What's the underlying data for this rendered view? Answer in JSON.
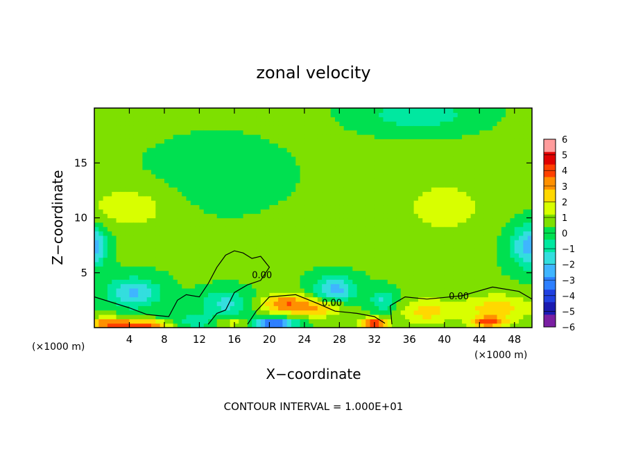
{
  "chart_data": {
    "type": "heatmap",
    "title": "zonal velocity",
    "xlabel": "X−coordinate",
    "ylabel": "Z−coordinate",
    "x_unit_left": "(×1000 m)",
    "x_unit_right": "(×1000 m)",
    "xlim": [
      0,
      50
    ],
    "ylim": [
      0,
      20
    ],
    "x_ticks": [
      4,
      8,
      12,
      16,
      20,
      24,
      28,
      32,
      36,
      40,
      44,
      48
    ],
    "x_tick_labels": [
      "4",
      "8",
      "12",
      "16",
      "20",
      "24",
      "28",
      "32",
      "36",
      "40",
      "44",
      "48"
    ],
    "y_ticks": [
      5,
      10,
      15
    ],
    "y_tick_labels": [
      "5",
      "10",
      "15"
    ],
    "colorbar": {
      "min": -6,
      "max": 6,
      "labels": [
        "6",
        "5",
        "4",
        "3",
        "2",
        "1",
        "0",
        "−1",
        "−2",
        "−3",
        "−4",
        "−5",
        "−6"
      ],
      "colors": [
        "#7a1fa2",
        "#1a1ab0",
        "#2040e0",
        "#2d7fff",
        "#3fb5ff",
        "#33dede",
        "#00e8a0",
        "#00e050",
        "#7ee000",
        "#d8ff00",
        "#ffd800",
        "#ff9000",
        "#ff4000",
        "#e00000",
        "#ff9c9c"
      ]
    },
    "contour_labels": [
      "0.00",
      "0.00",
      "0.00"
    ],
    "footer": "CONTOUR INTERVAL = 1.000E+01",
    "background_value": 0.5,
    "features": [
      {
        "x": 0,
        "z": 7.5,
        "rx": 1.5,
        "rz": 1.8,
        "v": -3
      },
      {
        "x": 50,
        "z": 7.5,
        "rx": 2.5,
        "rz": 2,
        "v": -3
      },
      {
        "x": 4.5,
        "z": 3.2,
        "rx": 3,
        "rz": 1.4,
        "v": -2.6
      },
      {
        "x": 5,
        "z": 0.3,
        "rx": 4,
        "rz": 0.4,
        "v": 3.8
      },
      {
        "x": 1.5,
        "z": 0.5,
        "rx": 2,
        "rz": 0.6,
        "v": 2
      },
      {
        "x": 11,
        "z": 0.5,
        "rx": 3,
        "rz": 0.7,
        "v": -1.5
      },
      {
        "x": 15,
        "z": 2.2,
        "rx": 3,
        "rz": 1.2,
        "v": -2
      },
      {
        "x": 16,
        "z": 0.5,
        "rx": 2,
        "rz": 0.5,
        "v": 1.5
      },
      {
        "x": 20.5,
        "z": 0.4,
        "rx": 2.5,
        "rz": 0.5,
        "v": -4.5
      },
      {
        "x": 22,
        "z": 2.2,
        "rx": 3,
        "rz": 0.9,
        "v": 3
      },
      {
        "x": 26,
        "z": 1.8,
        "rx": 2.5,
        "rz": 0.8,
        "v": 2
      },
      {
        "x": 27.5,
        "z": 3.5,
        "rx": 2.5,
        "rz": 1.2,
        "v": -2.8
      },
      {
        "x": 32,
        "z": 0.4,
        "rx": 1.5,
        "rz": 0.5,
        "v": 4.2
      },
      {
        "x": 33,
        "z": 2.5,
        "rx": 1.5,
        "rz": 1,
        "v": -1.8
      },
      {
        "x": 38,
        "z": 1.5,
        "rx": 3,
        "rz": 1.2,
        "v": 1.8
      },
      {
        "x": 46,
        "z": 1.8,
        "rx": 4,
        "rz": 1.2,
        "v": 2
      },
      {
        "x": 45,
        "z": 0.5,
        "rx": 2,
        "rz": 0.5,
        "v": 3.2
      },
      {
        "x": 37,
        "z": 19.5,
        "rx": 6,
        "rz": 1.5,
        "v": -1.5
      },
      {
        "x": 4,
        "z": 11,
        "rx": 5,
        "rz": 2,
        "v": 1.2
      },
      {
        "x": 14,
        "z": 14,
        "rx": 7,
        "rz": 3,
        "v": -0.6
      },
      {
        "x": 40,
        "z": 11,
        "rx": 6,
        "rz": 3,
        "v": 1
      }
    ],
    "zero_contour": [
      [
        0,
        2.8
      ],
      [
        2,
        2.3
      ],
      [
        4,
        1.8
      ],
      [
        6,
        1.2
      ],
      [
        8.5,
        1.0
      ],
      [
        9.5,
        2.5
      ],
      [
        10.5,
        3.0
      ],
      [
        12,
        2.8
      ],
      [
        13,
        4.0
      ],
      [
        14,
        5.5
      ],
      [
        15,
        6.6
      ],
      [
        16,
        7.0
      ],
      [
        17,
        6.8
      ],
      [
        18,
        6.3
      ],
      [
        19,
        6.5
      ],
      [
        20,
        5.5
      ],
      [
        19,
        4.3
      ],
      [
        17.5,
        3.9
      ],
      [
        16,
        3.2
      ],
      [
        15,
        1.6
      ],
      [
        14,
        1.3
      ],
      [
        13,
        0.3
      ]
    ],
    "zero_contour_2": [
      [
        17.5,
        0.3
      ],
      [
        18.5,
        1.5
      ],
      [
        20,
        2.8
      ],
      [
        23,
        3.0
      ],
      [
        25.5,
        2.2
      ],
      [
        27.5,
        1.5
      ],
      [
        30,
        1.3
      ],
      [
        32,
        1.0
      ],
      [
        33.2,
        0.4
      ]
    ],
    "zero_contour_3": [
      [
        34,
        0.3
      ],
      [
        33.8,
        2.0
      ],
      [
        35.5,
        2.8
      ],
      [
        38,
        2.6
      ],
      [
        42,
        2.9
      ],
      [
        45.5,
        3.7
      ],
      [
        48.5,
        3.3
      ],
      [
        50,
        2.6
      ]
    ]
  }
}
